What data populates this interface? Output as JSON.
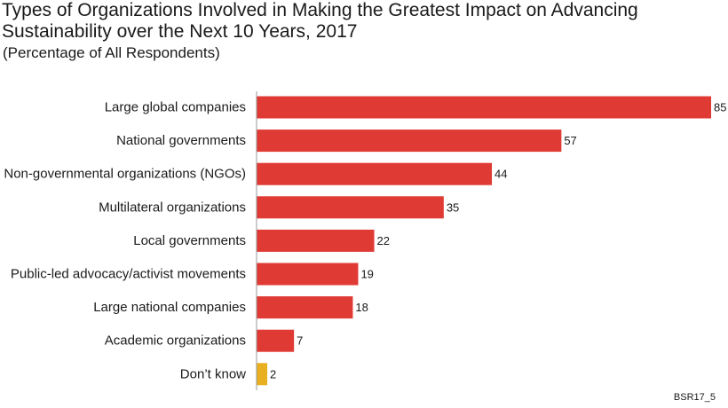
{
  "header": {
    "title": "Types of Organizations Involved in Making the Greatest Impact on Advancing Sustainability over the Next 10 Years, 2017",
    "subtitle": "(Percentage of All Respondents)"
  },
  "footer": {
    "source_code": "BSR17_5"
  },
  "colors": {
    "bar_primary": "#e03a34",
    "bar_highlight": "#e8b021",
    "axis": "#999999"
  },
  "chart_data": {
    "type": "bar",
    "orientation": "horizontal",
    "categories": [
      "Large global companies",
      "National governments",
      "Non-governmental organizations (NGOs)",
      "Multilateral organizations",
      "Local governments",
      "Public-led advocacy/activist movements",
      "Large national companies",
      "Academic organizations",
      "Don’t know"
    ],
    "values": [
      85,
      57,
      44,
      35,
      22,
      19,
      18,
      7,
      2
    ],
    "highlight_categories": [
      "Don’t know"
    ],
    "xlim": [
      0,
      85
    ],
    "grid": false,
    "legend": "none"
  }
}
